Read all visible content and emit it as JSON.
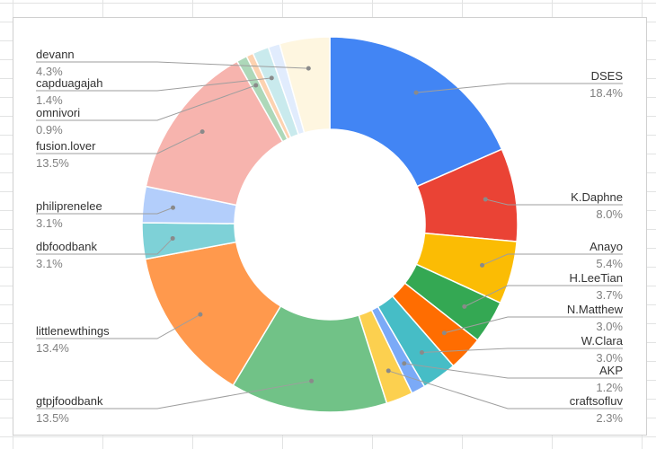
{
  "chart_data": {
    "type": "pie",
    "donut": true,
    "start_angle_deg": 0,
    "direction": "clockwise",
    "slices": [
      {
        "label": "DSES",
        "pct_label": "18.4%",
        "value": 18.4,
        "color": "#4285f4"
      },
      {
        "label": "K.Daphne",
        "pct_label": "8.0%",
        "value": 8.0,
        "color": "#ea4335"
      },
      {
        "label": "Anayo",
        "pct_label": "5.4%",
        "value": 5.4,
        "color": "#fbbc04"
      },
      {
        "label": "H.LeeTian",
        "pct_label": "3.7%",
        "value": 3.7,
        "color": "#34a853"
      },
      {
        "label": "N.Matthew",
        "pct_label": "3.0%",
        "value": 3.0,
        "color": "#ff6d01"
      },
      {
        "label": "W.Clara",
        "pct_label": "3.0%",
        "value": 3.0,
        "color": "#46bdc6"
      },
      {
        "label": "AKP",
        "pct_label": "1.2%",
        "value": 1.2,
        "color": "#7baaf7"
      },
      {
        "label": "craftsofluv",
        "pct_label": "2.3%",
        "value": 2.3,
        "color": "#fcd04f"
      },
      {
        "label": "gtpjfoodbank",
        "pct_label": "13.5%",
        "value": 13.5,
        "color": "#71c287"
      },
      {
        "label": "littlenewthings",
        "pct_label": "13.4%",
        "value": 13.4,
        "color": "#ff994d"
      },
      {
        "label": "dbfoodbank",
        "pct_label": "3.1%",
        "value": 3.1,
        "color": "#7ed1d7"
      },
      {
        "label": "philiprenelee",
        "pct_label": "3.1%",
        "value": 3.1,
        "color": "#b3cefb"
      },
      {
        "label": "fusion.lover",
        "pct_label": "13.5%",
        "value": 13.5,
        "color": "#f7b4ae"
      },
      {
        "label": "omnivori",
        "pct_label": "0.9%",
        "value": 0.9,
        "color": "#add8b9"
      },
      {
        "label": "",
        "pct_label": "",
        "value": 0.6,
        "color": "#fdd2b0"
      },
      {
        "label": "capduagajah",
        "pct_label": "1.4%",
        "value": 1.4,
        "color": "#c9eaed"
      },
      {
        "label": "",
        "pct_label": "",
        "value": 1.0,
        "color": "#e1ecfd"
      },
      {
        "label": "devann",
        "pct_label": "4.3%",
        "value": 4.3,
        "color": "#fef6e0"
      }
    ]
  }
}
